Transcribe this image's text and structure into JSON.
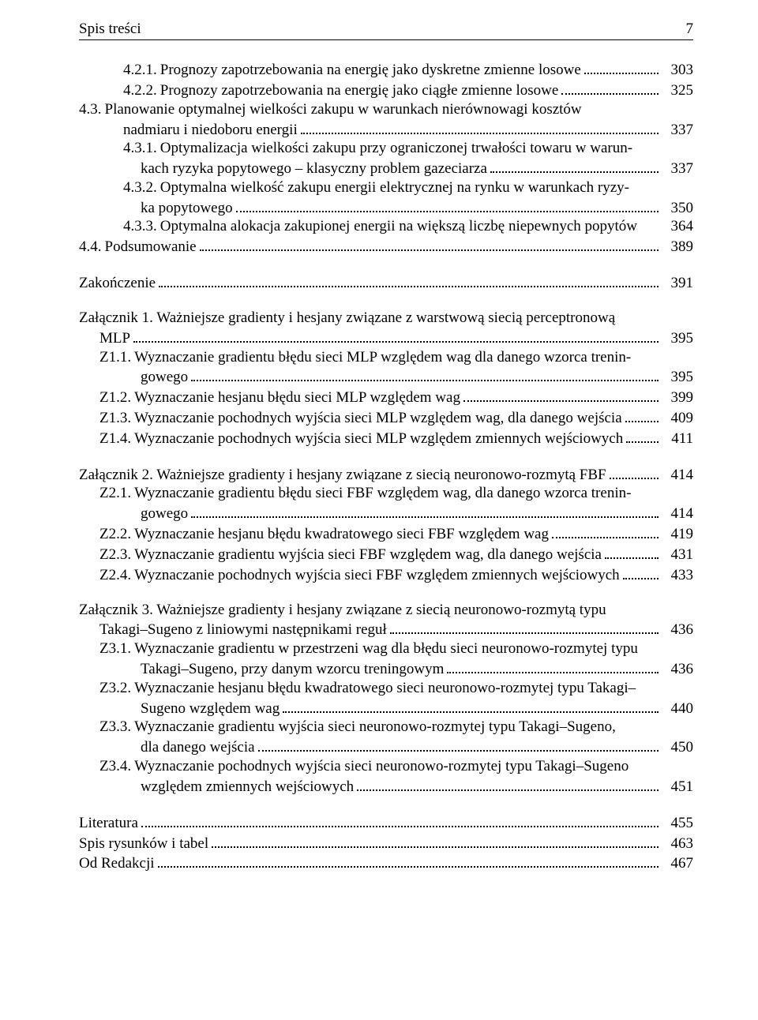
{
  "header": {
    "title": "Spis treści",
    "pagenum": "7"
  },
  "entries": [
    {
      "type": "line",
      "indentClass": "ind-sub",
      "num": "4.2.1.",
      "text": "Prognozy zapotrzebowania na energię jako dyskretne zmienne losowe",
      "page": "303"
    },
    {
      "type": "line",
      "indentClass": "ind-sub",
      "num": "4.2.2.",
      "text": "Prognozy zapotrzebowania na energię jako ciągłe zmienne losowe",
      "page": "325"
    },
    {
      "type": "stack2",
      "indentClass": "ind-0",
      "indent2Class": "ind-sub",
      "num": "4.3.",
      "first": "Planowanie  optymalnej  wielkości  zakupu  w  warunkach  nierównowagi  kosztów",
      "last": "nadmiaru i niedoboru energii",
      "page": "337"
    },
    {
      "type": "stack2",
      "indentClass": "ind-sub",
      "indent2Class": "ind-sub2",
      "num": "4.3.1.",
      "first": "Optymalizacja wielkości zakupu przy ograniczonej trwałości towaru w warun-",
      "last": "kach ryzyka popytowego – klasyczny problem gazeciarza",
      "page": "337"
    },
    {
      "type": "stack2",
      "indentClass": "ind-sub",
      "indent2Class": "ind-sub2",
      "num": "4.3.2.",
      "first": "Optymalna wielkość zakupu energii elektrycznej na rynku w warunkach ryzy-",
      "last": "ka popytowego",
      "page": "350"
    },
    {
      "type": "line-nodots",
      "indentClass": "ind-sub",
      "num": "4.3.3.",
      "text": "Optymalna alokacja zakupionej energii na większą liczbę niepewnych popytów",
      "page": "364"
    },
    {
      "type": "line",
      "indentClass": "ind-0",
      "num": "4.4.",
      "text": "Podsumowanie",
      "page": "389"
    },
    {
      "type": "gap"
    },
    {
      "type": "line",
      "indentClass": "ind-0",
      "num": "",
      "text": "Zakończenie",
      "page": "391"
    },
    {
      "type": "gap"
    },
    {
      "type": "stack2",
      "indentClass": "ind-0",
      "indent2Class": "ind-z",
      "num": "",
      "first": "Załącznik 1.  Ważniejsze  gradienty  i  hesjany  związane  z  warstwową  siecią  perceptronową",
      "last": "MLP",
      "page": "395"
    },
    {
      "type": "stack2",
      "indentClass": "ind-z",
      "indent2Class": "ind-z2",
      "num": "Z1.1.",
      "first": "Wyznaczanie gradientu błędu sieci MLP względem wag dla danego wzorca trenin-",
      "last": "gowego",
      "page": "395"
    },
    {
      "type": "line",
      "indentClass": "ind-z",
      "num": "Z1.2.",
      "text": "Wyznaczanie hesjanu błędu sieci MLP względem wag",
      "page": "399"
    },
    {
      "type": "line",
      "indentClass": "ind-z",
      "num": "Z1.3.",
      "text": "Wyznaczanie pochodnych wyjścia sieci MLP względem wag, dla danego wejścia",
      "page": "409"
    },
    {
      "type": "line",
      "indentClass": "ind-z",
      "num": "Z1.4.",
      "text": "Wyznaczanie pochodnych wyjścia sieci MLP względem zmiennych wejściowych",
      "page": "411"
    },
    {
      "type": "gap"
    },
    {
      "type": "line",
      "indentClass": "ind-0",
      "num": "",
      "text": "Załącznik 2. Ważniejsze gradienty i hesjany związane z siecią neuronowo-rozmytą FBF",
      "page": "414"
    },
    {
      "type": "stack2",
      "indentClass": "ind-z",
      "indent2Class": "ind-z2",
      "num": "Z2.1.",
      "first": "Wyznaczanie gradientu błędu sieci FBF względem wag, dla danego wzorca trenin-",
      "last": "gowego",
      "page": "414"
    },
    {
      "type": "line",
      "indentClass": "ind-z",
      "num": "Z2.2.",
      "text": "Wyznaczanie hesjanu błędu kwadratowego sieci FBF względem wag",
      "page": "419"
    },
    {
      "type": "line",
      "indentClass": "ind-z",
      "num": "Z2.3.",
      "text": "Wyznaczanie gradientu wyjścia sieci FBF względem wag, dla danego wejścia",
      "page": "431"
    },
    {
      "type": "line",
      "indentClass": "ind-z",
      "num": "Z2.4.",
      "text": "Wyznaczanie pochodnych wyjścia sieci FBF względem zmiennych wejściowych",
      "page": "433"
    },
    {
      "type": "gap"
    },
    {
      "type": "stack2",
      "indentClass": "ind-0",
      "indent2Class": "ind-z",
      "num": "",
      "first": "Załącznik 3.  Ważniejsze  gradienty  i  hesjany  związane  z  siecią  neuronowo-rozmytą  typu",
      "last": "Takagi–Sugeno z liniowymi następnikami reguł",
      "page": "436"
    },
    {
      "type": "stack2",
      "indentClass": "ind-z",
      "indent2Class": "ind-z2",
      "num": "Z3.1.",
      "first": "Wyznaczanie gradientu w przestrzeni wag dla błędu sieci neuronowo-rozmytej typu",
      "last": "Takagi–Sugeno, przy danym wzorcu treningowym",
      "page": "436"
    },
    {
      "type": "stack2",
      "indentClass": "ind-z",
      "indent2Class": "ind-z2",
      "num": "Z3.2.",
      "first": "Wyznaczanie hesjanu błędu kwadratowego sieci neuronowo-rozmytej typu Takagi–",
      "last": "Sugeno względem wag",
      "page": "440"
    },
    {
      "type": "stack2",
      "indentClass": "ind-z",
      "indent2Class": "ind-z2",
      "num": "Z3.3.",
      "first": "Wyznaczanie  gradientu  wyjścia  sieci  neuronowo-rozmytej  typu  Takagi–Sugeno,",
      "last": "dla danego wejścia",
      "page": "450"
    },
    {
      "type": "stack2",
      "indentClass": "ind-z",
      "indent2Class": "ind-z2",
      "num": "Z3.4.",
      "first": "Wyznaczanie pochodnych wyjścia sieci neuronowo-rozmytej typu Takagi–Sugeno",
      "last": "względem zmiennych wejściowych",
      "page": "451"
    },
    {
      "type": "gap"
    },
    {
      "type": "line",
      "indentClass": "ind-0",
      "num": "",
      "text": "Literatura",
      "page": "455"
    },
    {
      "type": "line",
      "indentClass": "ind-0",
      "num": "",
      "text": "Spis rysunków i tabel",
      "page": "463"
    },
    {
      "type": "line",
      "indentClass": "ind-0",
      "num": "",
      "text": "Od Redakcji",
      "page": "467"
    }
  ]
}
